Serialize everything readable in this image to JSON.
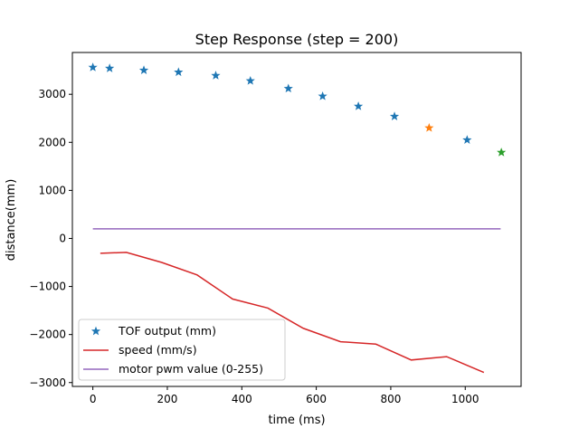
{
  "chart_data": {
    "type": "line",
    "title": "Step Response (step = 200)",
    "xlabel": "time (ms)",
    "ylabel": "distance(mm)",
    "xlim": [
      -55,
      1150
    ],
    "ylim": [
      -3080,
      3870
    ],
    "xticks": [
      0,
      200,
      400,
      600,
      800,
      1000
    ],
    "yticks": [
      -3000,
      -2000,
      -1000,
      0,
      1000,
      2000,
      3000
    ],
    "xtick_labels": [
      "0",
      "200",
      "400",
      "600",
      "800",
      "1000"
    ],
    "ytick_labels": [
      "−3000",
      "−2000",
      "−1000",
      "0",
      "1000",
      "2000",
      "3000"
    ],
    "grid": false,
    "legend_position": "lower-left",
    "series": [
      {
        "name": "TOF output (mm)",
        "kind": "scatter-star",
        "color": "#1f77b4",
        "x": [
          0,
          45,
          137,
          230,
          330,
          423,
          525,
          617,
          713,
          810,
          1005
        ],
        "y": [
          3560,
          3540,
          3500,
          3460,
          3390,
          3280,
          3120,
          2960,
          2750,
          2540,
          2050
        ]
      },
      {
        "name": "speed (mm/s)",
        "kind": "line",
        "color": "#d62728",
        "x": [
          20,
          90,
          185,
          280,
          375,
          470,
          565,
          665,
          760,
          855,
          950,
          1050
        ],
        "y": [
          -310,
          -290,
          -500,
          -760,
          -1260,
          -1450,
          -1870,
          -2150,
          -2200,
          -2530,
          -2460,
          -2790
        ]
      },
      {
        "name": "motor pwm value (0-255)",
        "kind": "line",
        "color": "#9467bd",
        "x": [
          0,
          1095
        ],
        "y": [
          200,
          200
        ]
      },
      {
        "kind": "scatter-star",
        "color": "#ff7f0e",
        "x": [
          903
        ],
        "y": [
          2300
        ]
      },
      {
        "kind": "scatter-star",
        "color": "#2ca02c",
        "x": [
          1097
        ],
        "y": [
          1790
        ]
      }
    ]
  }
}
